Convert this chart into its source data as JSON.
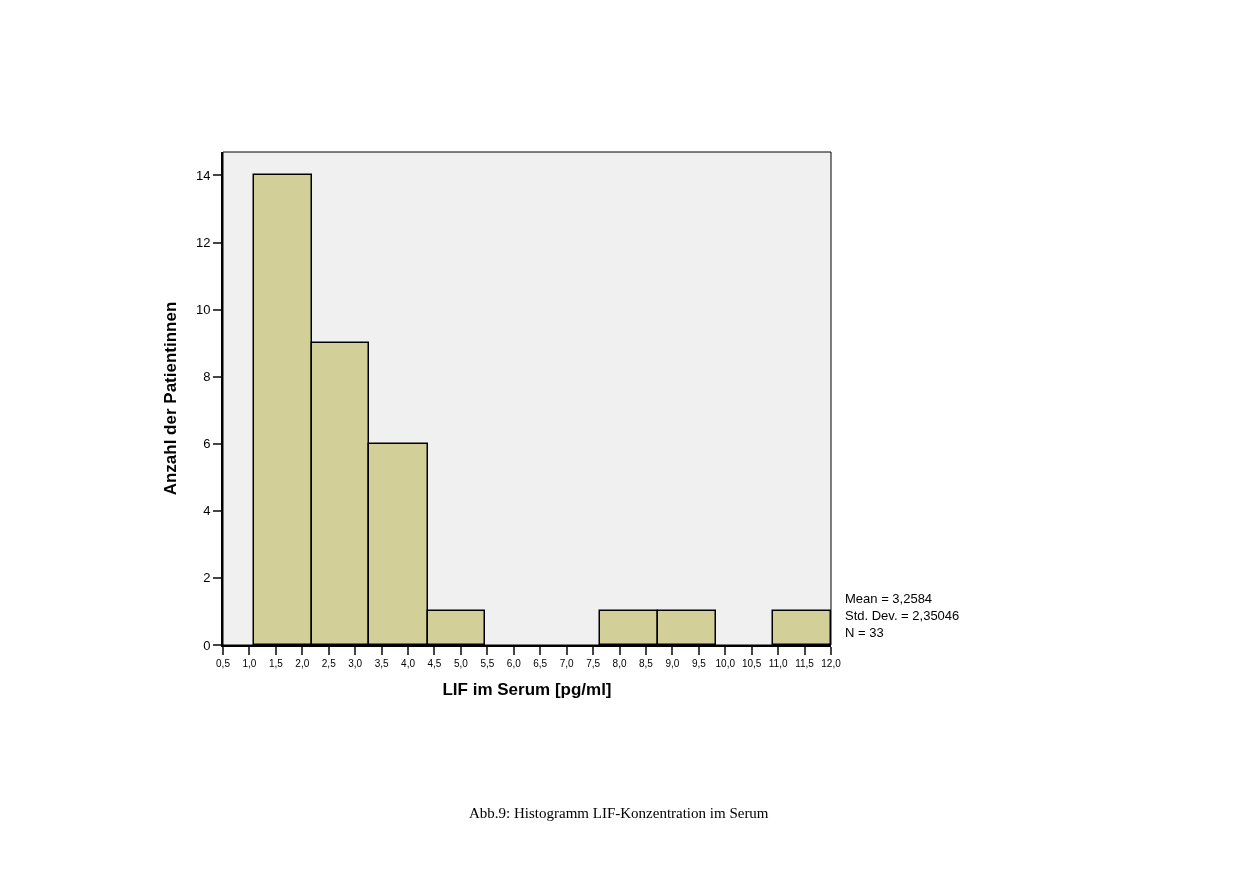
{
  "chart_data": {
    "type": "histogram",
    "xlabel": "LIF im Serum [pg/ml]",
    "ylabel": "Anzahl der Patientinnen",
    "bins": [
      1.08,
      2.18,
      3.27,
      4.37,
      5.46,
      7.63,
      8.73,
      9.82,
      10.91,
      12.0
    ],
    "values": [
      14,
      9,
      6,
      1,
      0,
      1,
      1,
      0,
      1
    ],
    "color": "#d3cf98",
    "xlim": [
      0.5,
      12.0
    ],
    "xticks": [
      {
        "value": 0.5,
        "label": "0,5"
      },
      {
        "value": 1.0,
        "label": "1,0"
      },
      {
        "value": 1.5,
        "label": "1,5"
      },
      {
        "value": 2.0,
        "label": "2,0"
      },
      {
        "value": 2.5,
        "label": "2,5"
      },
      {
        "value": 3.0,
        "label": "3,0"
      },
      {
        "value": 3.5,
        "label": "3,5"
      },
      {
        "value": 4.0,
        "label": "4,0"
      },
      {
        "value": 4.5,
        "label": "4,5"
      },
      {
        "value": 5.0,
        "label": "5,0"
      },
      {
        "value": 5.5,
        "label": "5,5"
      },
      {
        "value": 6.0,
        "label": "6,0"
      },
      {
        "value": 6.5,
        "label": "6,5"
      },
      {
        "value": 7.0,
        "label": "7,0"
      },
      {
        "value": 7.5,
        "label": "7,5"
      },
      {
        "value": 8.0,
        "label": "8,0"
      },
      {
        "value": 8.5,
        "label": "8,5"
      },
      {
        "value": 9.0,
        "label": "9,0"
      },
      {
        "value": 9.5,
        "label": "9,5"
      },
      {
        "value": 10.0,
        "label": "10,0"
      },
      {
        "value": 10.5,
        "label": "10,5"
      },
      {
        "value": 11.0,
        "label": "11,0"
      },
      {
        "value": 11.5,
        "label": "11,5"
      },
      {
        "value": 12.0,
        "label": "12,0"
      }
    ],
    "ylim": [
      0,
      14.7
    ],
    "yticks": [
      0,
      2,
      4,
      6,
      8,
      10,
      12,
      14
    ],
    "annotations": [
      "Mean = 3,2584\nStd. Dev. = 2,35046\nN = 33",
      "Abb.9: Histogramm LIF-Konzentration im Serum"
    ]
  }
}
